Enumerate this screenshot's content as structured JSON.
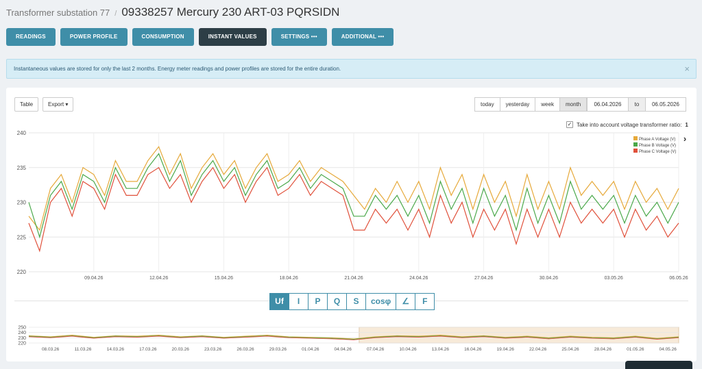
{
  "header": {
    "breadcrumb": "Transformer substation 77",
    "title": "09338257 Mercury 230 ART-03 PQRSIDN"
  },
  "nav": [
    {
      "label": "READINGS"
    },
    {
      "label": "POWER PROFILE"
    },
    {
      "label": "CONSUMPTION"
    },
    {
      "label": "INSTANT VALUES"
    },
    {
      "label": "SETTINGS •••"
    },
    {
      "label": "ADDITIONAL •••"
    }
  ],
  "alert": {
    "text": "Instantaneous values are stored for only the last 2 months. Energy meter readings and power profiles are stored for the entire duration.",
    "close": "×"
  },
  "toolbar": {
    "table": "Table",
    "export": "Export ▾"
  },
  "range": {
    "today": "today",
    "yesterday": "yesterday",
    "week": "week",
    "month": "month",
    "from": "06.04.2026",
    "to_label": "to",
    "to": "06.05.2026"
  },
  "ratio": {
    "label": "Take into account voltage transformer ratio:",
    "value": "1",
    "checked": "✓"
  },
  "legend_arrow": "›",
  "params": [
    "Uf",
    "I",
    "P",
    "Q",
    "S",
    "cosφ",
    "∠",
    "F"
  ],
  "colors": {
    "phase_a": "#e6a93a",
    "phase_b": "#4aa84a",
    "phase_c": "#e0503a",
    "accent": "#3f8ea8"
  },
  "chart_data": [
    {
      "type": "line",
      "title": "",
      "ylim": [
        220,
        240
      ],
      "yticks": [
        220,
        225,
        230,
        235,
        240
      ],
      "xlim": [
        0,
        30
      ],
      "xticks": [
        {
          "x": 3,
          "label": "09.04.26"
        },
        {
          "x": 6,
          "label": "12.04.26"
        },
        {
          "x": 9,
          "label": "15.04.26"
        },
        {
          "x": 12,
          "label": "18.04.26"
        },
        {
          "x": 15,
          "label": "21.04.26"
        },
        {
          "x": 18,
          "label": "24.04.26"
        },
        {
          "x": 21,
          "label": "27.04.26"
        },
        {
          "x": 24,
          "label": "30.04.26"
        },
        {
          "x": 27,
          "label": "03.05.26"
        },
        {
          "x": 30,
          "label": "06.05.26"
        }
      ],
      "grid": true,
      "legend_position": "top-right",
      "series": [
        {
          "name": "Phase A Voltage (V)",
          "x": [
            0,
            0.5,
            1,
            1.5,
            2,
            2.5,
            3,
            3.5,
            4,
            4.5,
            5,
            5.5,
            6,
            6.5,
            7,
            7.5,
            8,
            8.5,
            9,
            9.5,
            10,
            10.5,
            11,
            11.5,
            12,
            12.5,
            13,
            13.5,
            14,
            14.5,
            15,
            15.5,
            16,
            16.5,
            17,
            17.5,
            18,
            18.5,
            19,
            19.5,
            20,
            20.5,
            21,
            21.5,
            22,
            22.5,
            23,
            23.5,
            24,
            24.5,
            25,
            25.5,
            26,
            26.5,
            27,
            27.5,
            28,
            28.5,
            29,
            29.5,
            30
          ],
          "values": [
            228,
            226,
            232,
            234,
            230,
            235,
            234,
            231,
            236,
            233,
            233,
            236,
            238,
            234,
            237,
            232,
            235,
            237,
            234,
            236,
            232,
            235,
            237,
            233,
            234,
            236,
            233,
            235,
            234,
            233,
            231,
            229,
            232,
            230,
            233,
            230,
            233,
            229,
            235,
            231,
            234,
            229,
            234,
            230,
            233,
            228,
            234,
            229,
            233,
            229,
            235,
            231,
            233,
            231,
            233,
            229,
            233,
            230,
            232,
            229,
            232
          ]
        },
        {
          "name": "Phase B Voltage (V)",
          "x": [
            0,
            0.5,
            1,
            1.5,
            2,
            2.5,
            3,
            3.5,
            4,
            4.5,
            5,
            5.5,
            6,
            6.5,
            7,
            7.5,
            8,
            8.5,
            9,
            9.5,
            10,
            10.5,
            11,
            11.5,
            12,
            12.5,
            13,
            13.5,
            14,
            14.5,
            15,
            15.5,
            16,
            16.5,
            17,
            17.5,
            18,
            18.5,
            19,
            19.5,
            20,
            20.5,
            21,
            21.5,
            22,
            22.5,
            23,
            23.5,
            24,
            24.5,
            25,
            25.5,
            26,
            26.5,
            27,
            27.5,
            28,
            28.5,
            29,
            29.5,
            30
          ],
          "values": [
            230,
            225,
            231,
            233,
            229,
            234,
            233,
            230,
            235,
            232,
            232,
            235,
            237,
            233,
            236,
            231,
            234,
            236,
            233,
            235,
            231,
            234,
            236,
            232,
            233,
            235,
            232,
            234,
            233,
            232,
            228,
            228,
            231,
            229,
            231,
            228,
            231,
            227,
            233,
            229,
            232,
            227,
            232,
            228,
            231,
            226,
            232,
            227,
            231,
            227,
            233,
            229,
            231,
            229,
            231,
            227,
            231,
            228,
            230,
            227,
            230
          ]
        },
        {
          "name": "Phase C Voltage (V)",
          "x": [
            0,
            0.5,
            1,
            1.5,
            2,
            2.5,
            3,
            3.5,
            4,
            4.5,
            5,
            5.5,
            6,
            6.5,
            7,
            7.5,
            8,
            8.5,
            9,
            9.5,
            10,
            10.5,
            11,
            11.5,
            12,
            12.5,
            13,
            13.5,
            14,
            14.5,
            15,
            15.5,
            16,
            16.5,
            17,
            17.5,
            18,
            18.5,
            19,
            19.5,
            20,
            20.5,
            21,
            21.5,
            22,
            22.5,
            23,
            23.5,
            24,
            24.5,
            25,
            25.5,
            26,
            26.5,
            27,
            27.5,
            28,
            28.5,
            29,
            29.5,
            30
          ],
          "values": [
            227,
            223,
            230,
            232,
            228,
            233,
            232,
            229,
            234,
            231,
            231,
            234,
            235,
            232,
            234,
            230,
            233,
            235,
            232,
            234,
            230,
            233,
            235,
            231,
            232,
            234,
            231,
            233,
            232,
            231,
            226,
            226,
            229,
            227,
            229,
            226,
            229,
            225,
            231,
            227,
            230,
            225,
            229,
            226,
            229,
            224,
            229,
            225,
            229,
            225,
            230,
            227,
            229,
            227,
            229,
            225,
            229,
            226,
            228,
            225,
            227
          ]
        }
      ]
    },
    {
      "type": "line",
      "title": "",
      "ylim": [
        220,
        250
      ],
      "yticks": [
        220,
        230,
        240,
        250
      ],
      "xlim": [
        0,
        60
      ],
      "xticks": [
        {
          "x": 2,
          "label": "08.03.26"
        },
        {
          "x": 5,
          "label": "11.03.26"
        },
        {
          "x": 8,
          "label": "14.03.26"
        },
        {
          "x": 11,
          "label": "17.03.26"
        },
        {
          "x": 14,
          "label": "20.03.26"
        },
        {
          "x": 17,
          "label": "23.03.26"
        },
        {
          "x": 20,
          "label": "26.03.26"
        },
        {
          "x": 23,
          "label": "29.03.26"
        },
        {
          "x": 26,
          "label": "01.04.26"
        },
        {
          "x": 29,
          "label": "04.04.26"
        },
        {
          "x": 32,
          "label": "07.04.26"
        },
        {
          "x": 35,
          "label": "10.04.26"
        },
        {
          "x": 38,
          "label": "13.04.26"
        },
        {
          "x": 41,
          "label": "16.04.26"
        },
        {
          "x": 44,
          "label": "19.04.26"
        },
        {
          "x": 47,
          "label": "22.04.26"
        },
        {
          "x": 50,
          "label": "25.04.26"
        },
        {
          "x": 53,
          "label": "28.04.26"
        },
        {
          "x": 56,
          "label": "01.05.26"
        },
        {
          "x": 59,
          "label": "04.05.26"
        }
      ],
      "selection": [
        30.5,
        60
      ],
      "series": [
        {
          "name": "Phase A Voltage (V)",
          "x": [
            0,
            2,
            4,
            6,
            8,
            10,
            12,
            14,
            16,
            18,
            20,
            22,
            24,
            26,
            28,
            30,
            32,
            34,
            36,
            38,
            40,
            42,
            44,
            46,
            48,
            50,
            52,
            54,
            56,
            58,
            60
          ],
          "values": [
            234,
            232,
            235,
            231,
            234,
            233,
            235,
            232,
            234,
            231,
            233,
            235,
            232,
            231,
            230,
            228,
            232,
            234,
            233,
            235,
            232,
            234,
            231,
            233,
            230,
            233,
            231,
            230,
            233,
            229,
            232
          ]
        },
        {
          "name": "Phase B Voltage (V)",
          "x": [
            0,
            2,
            4,
            6,
            8,
            10,
            12,
            14,
            16,
            18,
            20,
            22,
            24,
            26,
            28,
            30,
            32,
            34,
            36,
            38,
            40,
            42,
            44,
            46,
            48,
            50,
            52,
            54,
            56,
            58,
            60
          ],
          "values": [
            233,
            231,
            234,
            230,
            233,
            232,
            234,
            231,
            233,
            230,
            232,
            234,
            231,
            230,
            229,
            227,
            231,
            233,
            232,
            234,
            231,
            233,
            230,
            232,
            229,
            232,
            230,
            229,
            232,
            228,
            231
          ]
        },
        {
          "name": "Phase C Voltage (V)",
          "x": [
            0,
            2,
            4,
            6,
            8,
            10,
            12,
            14,
            16,
            18,
            20,
            22,
            24,
            26,
            28,
            30,
            32,
            34,
            36,
            38,
            40,
            42,
            44,
            46,
            48,
            50,
            52,
            54,
            56,
            58,
            60
          ],
          "values": [
            232,
            230,
            233,
            229,
            232,
            231,
            233,
            230,
            232,
            229,
            231,
            233,
            230,
            229,
            228,
            226,
            230,
            232,
            231,
            233,
            230,
            232,
            229,
            231,
            228,
            231,
            229,
            228,
            231,
            227,
            230
          ]
        }
      ]
    }
  ]
}
